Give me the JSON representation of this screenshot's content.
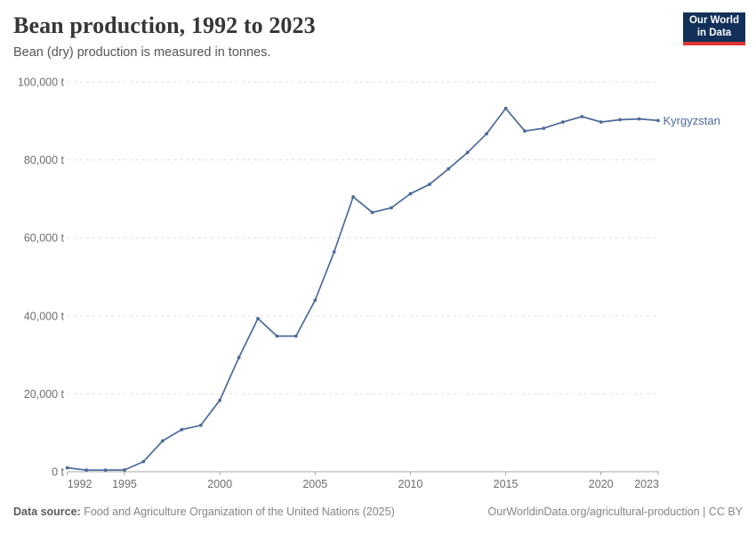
{
  "header": {
    "title": "Bean production, 1992 to 2023",
    "subtitle": "Bean (dry) production is measured in tonnes."
  },
  "logo": {
    "line1": "Our World",
    "line2": "in Data",
    "bg_color": "#12305a",
    "accent_color": "#e0352f"
  },
  "chart_data": {
    "type": "line",
    "title": "Bean production, 1992 to 2023",
    "ylabel": "",
    "xlabel": "",
    "unit": "t",
    "grid": true,
    "legend_position": "end-of-line",
    "series": [
      {
        "name": "Kyrgyzstan",
        "color": "#4C6A9C",
        "x": [
          1992,
          1993,
          1994,
          1995,
          1996,
          1997,
          1998,
          1999,
          2000,
          2001,
          2002,
          2003,
          2004,
          2005,
          2006,
          2007,
          2008,
          2009,
          2010,
          2011,
          2012,
          2013,
          2014,
          2015,
          2016,
          2017,
          2018,
          2019,
          2020,
          2021,
          2022,
          2023
        ],
        "values": [
          1000,
          400,
          400,
          450,
          2600,
          7900,
          10800,
          11900,
          18300,
          29300,
          39300,
          34800,
          34800,
          44000,
          56400,
          70500,
          66500,
          67700,
          71300,
          73700,
          77700,
          81900,
          86700,
          93200,
          87400,
          88100,
          89700,
          91100,
          89700,
          90300,
          90500,
          90100
        ]
      }
    ],
    "xlim": [
      1992,
      2023
    ],
    "ylim": [
      0,
      100000
    ],
    "xticks": [
      1992,
      1995,
      2000,
      2005,
      2010,
      2015,
      2020,
      2023
    ],
    "yticks": [
      0,
      20000,
      40000,
      60000,
      80000,
      100000
    ],
    "ytick_suffix": " t",
    "axis_color": "#a5a5a5",
    "grid_color": "#dddddd",
    "tick_label_color": "#6e6e6e"
  },
  "footer": {
    "source_label": "Data source:",
    "source": "Food and Agriculture Organization of the United Nations (2025)",
    "link": "OurWorldinData.org/agricultural-production",
    "separator": " | ",
    "license": "CC BY"
  }
}
